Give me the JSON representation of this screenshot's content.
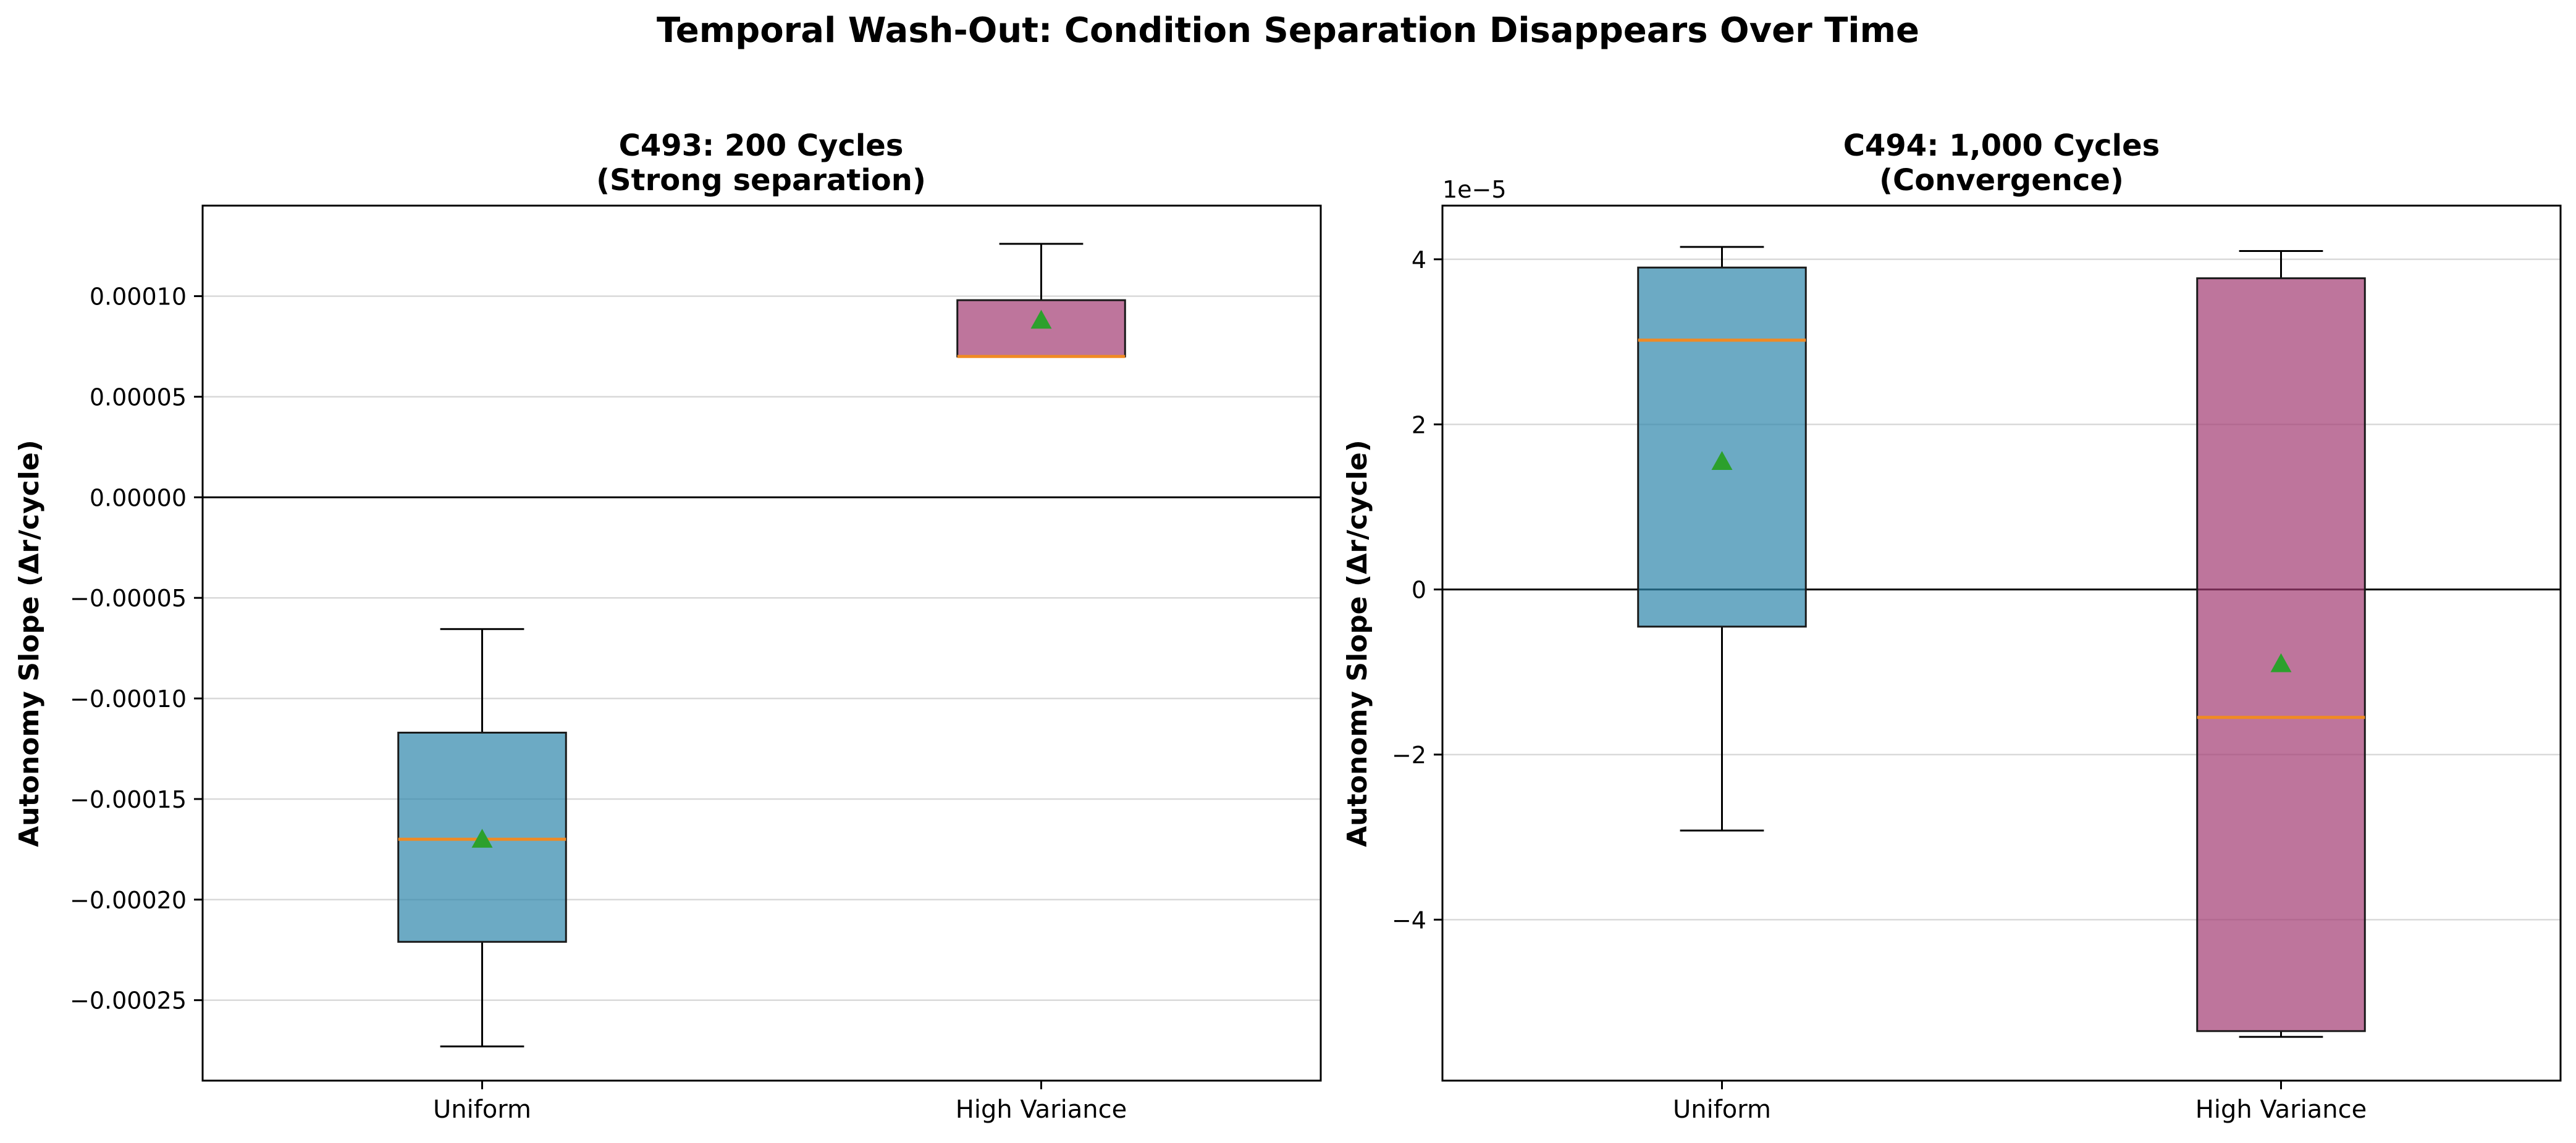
{
  "figure": {
    "suptitle": "Temporal Wash-Out: Condition Separation Disappears Over Time"
  },
  "colors": {
    "uniform": "#2E86AB",
    "high_variance": "#A23B72",
    "median": "#F08A24",
    "mean_marker": "#2CA02C",
    "grid": "#D9D9D9",
    "axis": "#000000"
  },
  "chart_data": [
    {
      "type": "box",
      "title": "C493: 200 Cycles",
      "subtitle": "(Strong separation)",
      "xlabel": "",
      "ylabel": "Autonomy Slope (Δr/cycle)",
      "categories": [
        "Uniform",
        "High Variance"
      ],
      "ylim": [
        -0.00029,
        0.000145
      ],
      "y_ticks": [
        0.0001,
        5e-05,
        0.0,
        -5e-05,
        -0.0001,
        -0.00015,
        -0.0002,
        -0.00025
      ],
      "y_tick_labels": [
        "0.00010",
        "0.00005",
        "0.00000",
        "−0.00005",
        "−0.00010",
        "−0.00015",
        "−0.00020",
        "−0.00025"
      ],
      "offset_label": "",
      "zero_line": true,
      "grid": "horizontal",
      "boxes": [
        {
          "category": "Uniform",
          "whisker_low": -0.000273,
          "q1": -0.000221,
          "median": -0.00017,
          "q3": -0.000117,
          "whisker_high": -6.55e-05,
          "mean": -0.00017
        },
        {
          "category": "High Variance",
          "whisker_low": 7e-05,
          "q1": 7e-05,
          "median": 7e-05,
          "q3": 9.8e-05,
          "whisker_high": 0.000126,
          "mean": 8.8e-05
        }
      ]
    },
    {
      "type": "box",
      "title": "C494: 1,000 Cycles",
      "subtitle": "(Convergence)",
      "xlabel": "",
      "ylabel": "Autonomy Slope (Δr/cycle)",
      "categories": [
        "Uniform",
        "High Variance"
      ],
      "ylim": [
        -5.95,
        4.65
      ],
      "y_ticks": [
        4,
        2,
        0,
        -2,
        -4
      ],
      "y_tick_labels": [
        "4",
        "2",
        "0",
        "−2",
        "−4"
      ],
      "offset_label": "1e−5",
      "zero_line": true,
      "grid": "horizontal",
      "boxes": [
        {
          "category": "Uniform",
          "whisker_low": -2.92,
          "q1": -0.45,
          "median": 3.02,
          "q3": 3.9,
          "whisker_high": 4.15,
          "mean": 1.55
        },
        {
          "category": "High Variance",
          "whisker_low": -5.42,
          "q1": -5.35,
          "median": -1.55,
          "q3": 3.77,
          "whisker_high": 4.1,
          "mean": -0.9
        }
      ]
    }
  ]
}
